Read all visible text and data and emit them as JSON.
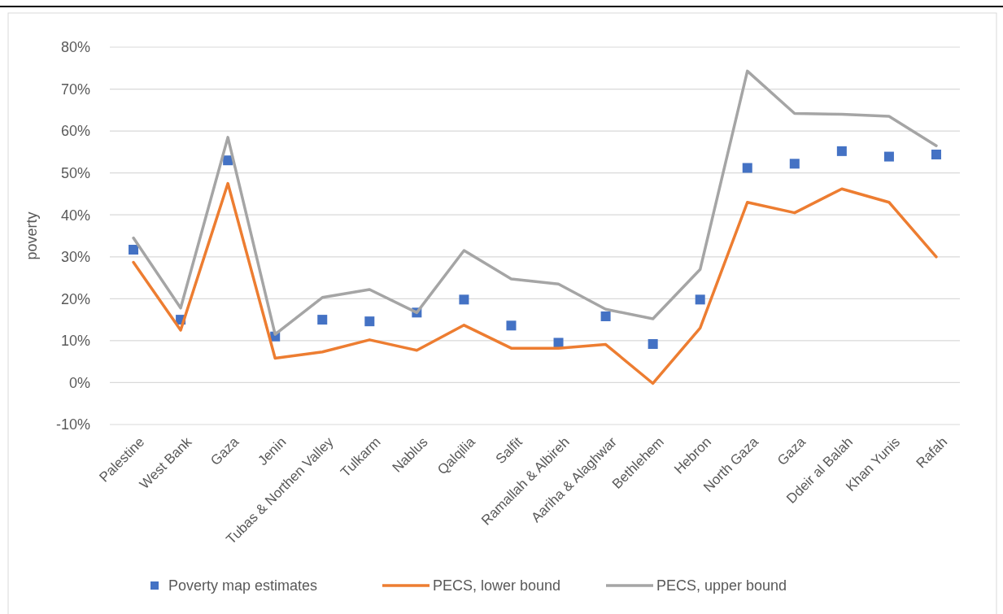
{
  "chart_data": {
    "type": "line",
    "ylabel": "poverty",
    "categories": [
      "Palestine",
      "West Bank",
      "Gaza",
      "Jenin",
      "Tubas & Northen Valley",
      "Tulkarm",
      "Nablus",
      "Qalqilia",
      "Salfit",
      "Ramallah & Albireh",
      "Aariha & Alaghwar",
      "Bethlehem",
      "Hebron",
      "North Gaza",
      "Gaza",
      "Ddeir al Balah",
      "Khan Yunis",
      "Rafah"
    ],
    "series": [
      {
        "name": "Poverty map estimates",
        "type": "scatter",
        "marker": "square",
        "color": "#4472c4",
        "values": [
          31.7,
          15,
          53,
          11,
          15,
          14.6,
          16.7,
          19.8,
          13.6,
          9.5,
          15.8,
          9.2,
          19.8,
          51.2,
          52.2,
          55.2,
          53.9,
          54.4
        ]
      },
      {
        "name": "PECS, lower bound",
        "color": "#ed7d31",
        "values": [
          28.7,
          12.5,
          47.5,
          5.8,
          7.3,
          10.2,
          7.7,
          13.7,
          8.2,
          8.2,
          9.1,
          -0.2,
          13,
          43,
          40.5,
          46.2,
          43,
          30
        ]
      },
      {
        "name": "PECS, upper bound",
        "color": "#a5a5a5",
        "values": [
          34.5,
          17.8,
          58.5,
          11.5,
          20.3,
          22.2,
          16.7,
          31.5,
          24.7,
          23.5,
          17.5,
          15.2,
          27,
          74.3,
          64.2,
          64,
          63.5,
          56.5
        ]
      }
    ],
    "ylim": [
      -10,
      80
    ],
    "yticks": [
      {
        "value": -10,
        "label": "-10%"
      },
      {
        "value": 0,
        "label": "0%"
      },
      {
        "value": 10,
        "label": "10%"
      },
      {
        "value": 20,
        "label": "20%"
      },
      {
        "value": 30,
        "label": "30%"
      },
      {
        "value": 40,
        "label": "40%"
      },
      {
        "value": 50,
        "label": "50%"
      },
      {
        "value": 60,
        "label": "60%"
      },
      {
        "value": 70,
        "label": "70%"
      },
      {
        "value": 80,
        "label": "80%"
      }
    ],
    "grid": "y",
    "legend": "bottom"
  }
}
